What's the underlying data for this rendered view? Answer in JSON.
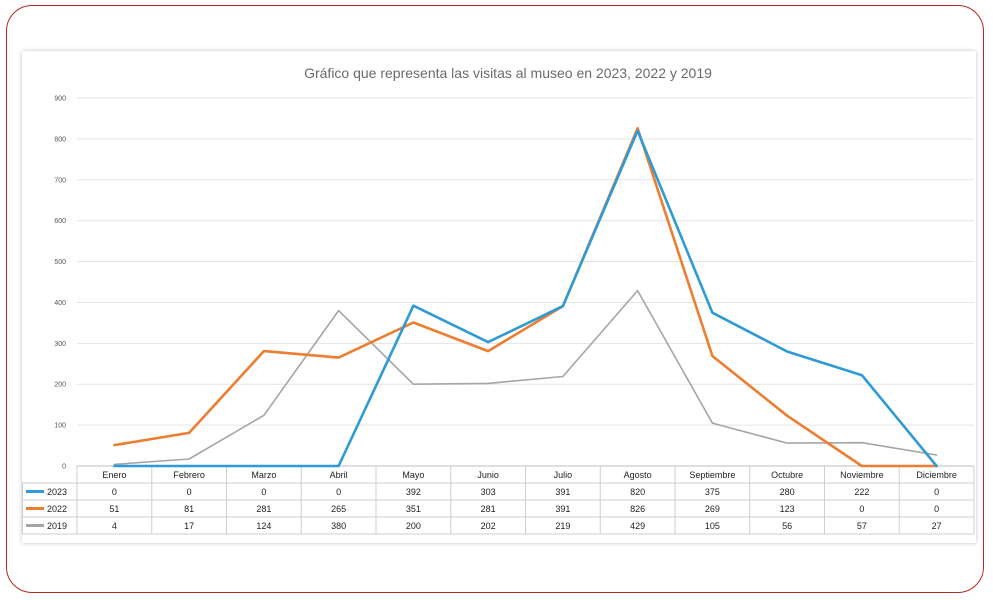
{
  "chart_data": {
    "type": "line",
    "title": "Gráfico que representa las visitas al museo en 2023, 2022 y 2019",
    "categories": [
      "Enero",
      "Febrero",
      "Marzo",
      "Abril",
      "Mayo",
      "Junio",
      "Julio",
      "Agosto",
      "Septiembre",
      "Octubre",
      "Noviembre",
      "Diciembre"
    ],
    "yticks": [
      "0",
      "100",
      "200",
      "300",
      "400",
      "500",
      "600",
      "700",
      "800",
      "900"
    ],
    "ylim": [
      0,
      900
    ],
    "grid": true,
    "legend": "data-table-left",
    "series": [
      {
        "name": "2023",
        "color": "#2e9bd6",
        "values": [
          0,
          0,
          0,
          0,
          392,
          303,
          391,
          820,
          375,
          280,
          222,
          0
        ]
      },
      {
        "name": "2022",
        "color": "#ed7d31",
        "values": [
          51,
          81,
          281,
          265,
          351,
          281,
          391,
          826,
          269,
          123,
          0,
          0
        ]
      },
      {
        "name": "2019",
        "color": "#a5a5a5",
        "values": [
          4,
          17,
          124,
          380,
          200,
          202,
          219,
          429,
          105,
          56,
          57,
          27
        ]
      }
    ]
  }
}
